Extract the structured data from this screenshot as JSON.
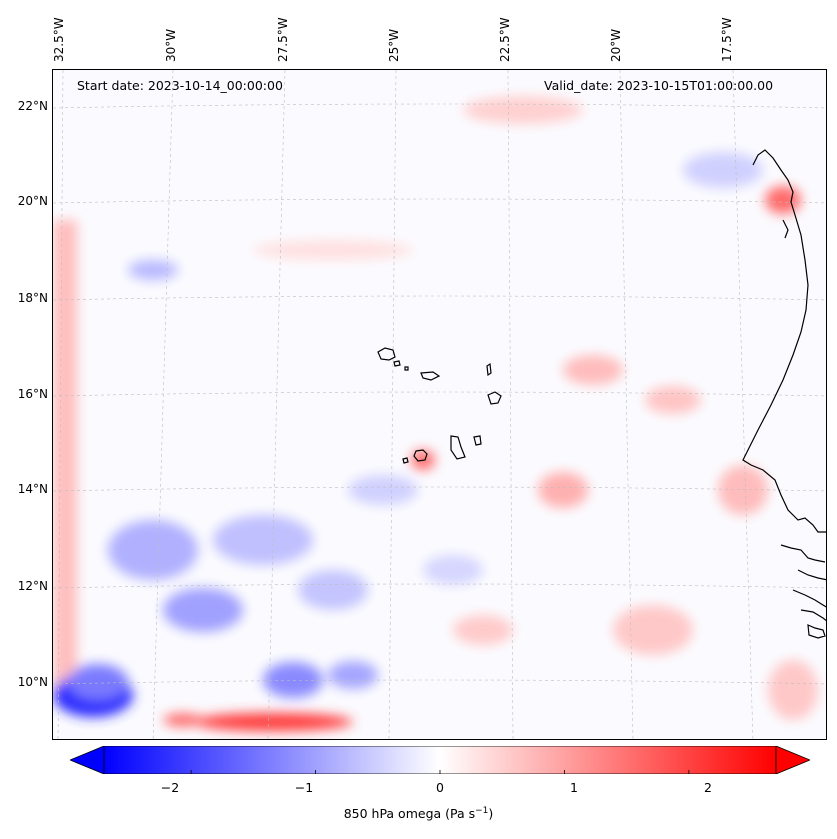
{
  "map": {
    "start_date_text": "Start date: 2023-10-14_00:00:00",
    "valid_date_text": "Valid_date: 2023-10-15T01:00:00.00",
    "longitude_labels": [
      "32.5°W",
      "30°W",
      "27.5°W",
      "25°W",
      "22.5°W",
      "20°W",
      "17.5°W"
    ],
    "latitude_labels": [
      "22°N",
      "20°N",
      "18°N",
      "16°N",
      "14°N",
      "12°N",
      "10°N"
    ],
    "extent": {
      "lon_min": -32.6,
      "lon_max": -15.3,
      "lat_min": 8.9,
      "lat_max": 22.8
    },
    "field": "850 hPa omega",
    "colormap": "bwr",
    "colors": {
      "negative": "#0000ff",
      "zero": "#ffffff",
      "positive": "#ff0000",
      "coastline": "#000000",
      "grid": "#bdbdbd"
    }
  },
  "colorbar": {
    "label_text": "850 hPa omega (Pa s",
    "label_sup": "−1",
    "label_close": ")",
    "range": [
      -2.7,
      2.7
    ],
    "extend": "both",
    "ticks": [
      {
        "value": -2,
        "label": "−2"
      },
      {
        "value": -1,
        "label": "−1"
      },
      {
        "value": 0,
        "label": "0"
      },
      {
        "value": 1,
        "label": "1"
      },
      {
        "value": 2,
        "label": "2"
      }
    ]
  }
}
